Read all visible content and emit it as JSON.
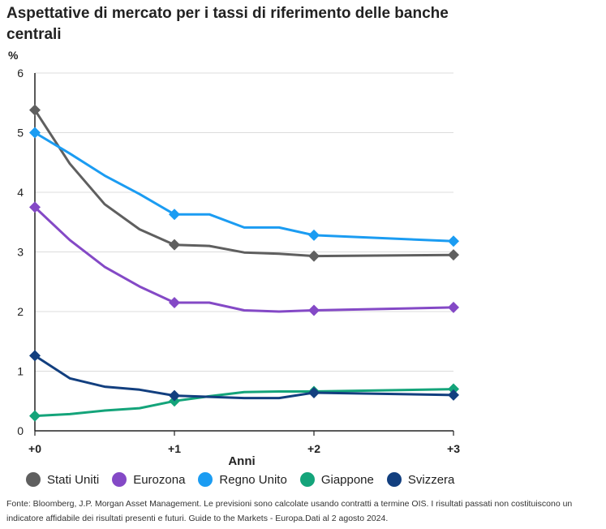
{
  "title": "Aspettative di mercato per i tassi di riferimento delle banche centrali",
  "source": "Fonte: Bloomberg, J.P. Morgan Asset Management. Le previsioni sono calcolate usando contratti a termine OIS. I risultati passati non costituiscono un indicatore affidabile dei risultati presenti e futuri. Guide to the Markets - Europa.Dati al 2 agosto 2024.",
  "chart_data": {
    "type": "line",
    "title": "Aspettative di mercato per i tassi di riferimento delle banche centrali",
    "xlabel": "Anni",
    "ylabel": "%",
    "xlim": [
      0,
      3
    ],
    "ylim": [
      0,
      6
    ],
    "x_ticks": [
      0,
      1,
      2,
      3
    ],
    "x_tick_labels": [
      "+0",
      "+1",
      "+2",
      "+3"
    ],
    "y_ticks": [
      0,
      1,
      2,
      3,
      4,
      5,
      6
    ],
    "y_tick_labels": [
      "0",
      "1",
      "2",
      "3",
      "4",
      "5",
      "6"
    ],
    "grid": "horizontal",
    "legend_position": "bottom",
    "marker_x": [
      0,
      1,
      2,
      3
    ],
    "series": [
      {
        "name": "Stati Uniti",
        "color": "#5f5f5f",
        "x": [
          0,
          0.25,
          0.5,
          0.75,
          1,
          1.25,
          1.5,
          1.75,
          2,
          3
        ],
        "y": [
          5.38,
          4.48,
          3.8,
          3.38,
          3.12,
          3.1,
          2.99,
          2.97,
          2.93,
          2.95
        ]
      },
      {
        "name": "Eurozona",
        "color": "#8449c6",
        "x": [
          0,
          0.25,
          0.5,
          0.75,
          1,
          1.25,
          1.5,
          1.75,
          2,
          3
        ],
        "y": [
          3.75,
          3.2,
          2.75,
          2.42,
          2.15,
          2.15,
          2.02,
          2.0,
          2.02,
          2.07
        ]
      },
      {
        "name": "Regno Unito",
        "color": "#1b9cf2",
        "x": [
          0,
          0.25,
          0.5,
          0.75,
          1,
          1.25,
          1.5,
          1.75,
          2,
          3
        ],
        "y": [
          5.0,
          4.65,
          4.28,
          3.97,
          3.63,
          3.63,
          3.41,
          3.41,
          3.28,
          3.18
        ]
      },
      {
        "name": "Giappone",
        "color": "#14a47a",
        "x": [
          0,
          0.25,
          0.5,
          0.75,
          1,
          1.25,
          1.5,
          1.75,
          2,
          3
        ],
        "y": [
          0.25,
          0.28,
          0.34,
          0.38,
          0.5,
          0.58,
          0.65,
          0.66,
          0.66,
          0.7
        ]
      },
      {
        "name": "Svizzera",
        "color": "#123f7f",
        "x": [
          0,
          0.25,
          0.5,
          0.75,
          1,
          1.25,
          1.5,
          1.75,
          2,
          3
        ],
        "y": [
          1.26,
          0.88,
          0.74,
          0.69,
          0.59,
          0.57,
          0.55,
          0.55,
          0.64,
          0.6
        ]
      }
    ]
  }
}
